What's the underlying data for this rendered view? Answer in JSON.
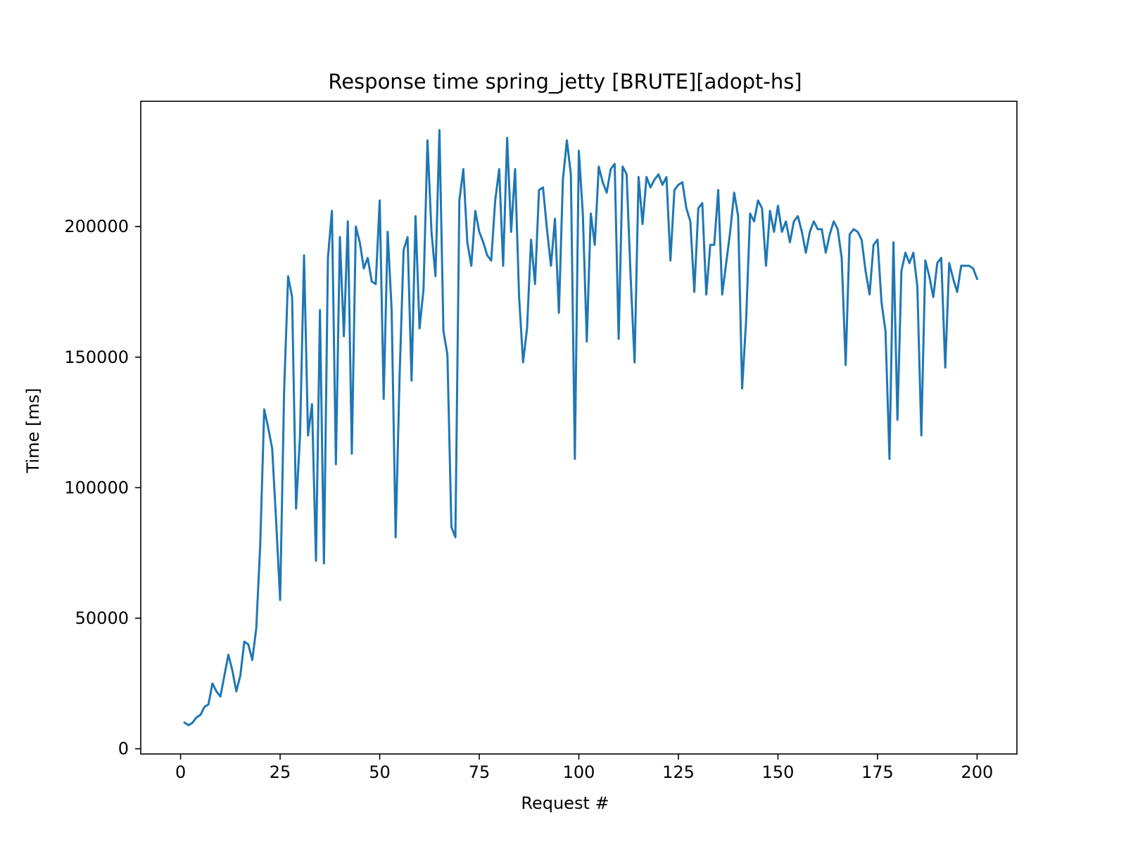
{
  "colors": {
    "line": "#1f77b4",
    "axes": "#000000",
    "background": "#ffffff"
  },
  "chart_data": {
    "type": "line",
    "title": "Response time spring_jetty [BRUTE][adopt-hs]",
    "xlabel": "Request #",
    "ylabel": "Time [ms]",
    "xlim": [
      -10,
      210
    ],
    "ylim": [
      -2000,
      248000
    ],
    "xticks": [
      0,
      25,
      50,
      75,
      100,
      125,
      150,
      175,
      200
    ],
    "yticks": [
      0,
      50000,
      100000,
      150000,
      200000
    ],
    "grid": false,
    "legend": "none",
    "series": [
      {
        "color": "#1f77b4",
        "x": [
          1,
          2,
          3,
          4,
          5,
          6,
          7,
          8,
          9,
          10,
          11,
          12,
          13,
          14,
          15,
          16,
          17,
          18,
          19,
          20,
          21,
          22,
          23,
          24,
          25,
          26,
          27,
          28,
          29,
          30,
          31,
          32,
          33,
          34,
          35,
          36,
          37,
          38,
          39,
          40,
          41,
          42,
          43,
          44,
          45,
          46,
          47,
          48,
          49,
          50,
          51,
          52,
          53,
          54,
          55,
          56,
          57,
          58,
          59,
          60,
          61,
          62,
          63,
          64,
          65,
          66,
          67,
          68,
          69,
          70,
          71,
          72,
          73,
          74,
          75,
          76,
          77,
          78,
          79,
          80,
          81,
          82,
          83,
          84,
          85,
          86,
          87,
          88,
          89,
          90,
          91,
          92,
          93,
          94,
          95,
          96,
          97,
          98,
          99,
          100,
          101,
          102,
          103,
          104,
          105,
          106,
          107,
          108,
          109,
          110,
          111,
          112,
          113,
          114,
          115,
          116,
          117,
          118,
          119,
          120,
          121,
          122,
          123,
          124,
          125,
          126,
          127,
          128,
          129,
          130,
          131,
          132,
          133,
          134,
          135,
          136,
          137,
          138,
          139,
          140,
          141,
          142,
          143,
          144,
          145,
          146,
          147,
          148,
          149,
          150,
          151,
          152,
          153,
          154,
          155,
          156,
          157,
          158,
          159,
          160,
          161,
          162,
          163,
          164,
          165,
          166,
          167,
          168,
          169,
          170,
          171,
          172,
          173,
          174,
          175,
          176,
          177,
          178,
          179,
          180,
          181,
          182,
          183,
          184,
          185,
          186,
          187,
          188,
          189,
          190,
          191,
          192,
          193,
          194,
          195,
          196,
          197,
          198,
          199,
          200
        ],
        "y": [
          10000,
          9000,
          10000,
          12000,
          13000,
          16000,
          17000,
          25000,
          22000,
          20000,
          28000,
          36000,
          30000,
          22000,
          28000,
          41000,
          40000,
          34000,
          46000,
          78000,
          130000,
          123000,
          115000,
          87000,
          57000,
          137000,
          181000,
          173000,
          92000,
          120000,
          189000,
          120000,
          132000,
          72000,
          168000,
          71000,
          188000,
          206000,
          109000,
          196000,
          158000,
          202000,
          113000,
          200000,
          194000,
          184000,
          188000,
          179000,
          178000,
          210000,
          134000,
          198000,
          168000,
          81000,
          143000,
          191000,
          196000,
          141000,
          204000,
          161000,
          176000,
          233000,
          198000,
          181000,
          237000,
          160000,
          151000,
          85000,
          81000,
          210000,
          222000,
          194000,
          185000,
          206000,
          198000,
          194000,
          189000,
          187000,
          210000,
          222000,
          185000,
          234000,
          198000,
          222000,
          173000,
          148000,
          161000,
          195000,
          178000,
          214000,
          215000,
          199000,
          185000,
          203000,
          167000,
          218000,
          233000,
          220000,
          111000,
          229000,
          205000,
          156000,
          205000,
          193000,
          223000,
          217000,
          213000,
          222000,
          224000,
          157000,
          223000,
          220000,
          181000,
          148000,
          219000,
          201000,
          219000,
          215000,
          218000,
          220000,
          216000,
          219000,
          187000,
          214000,
          216000,
          217000,
          207000,
          202000,
          175000,
          207000,
          209000,
          174000,
          193000,
          193000,
          214000,
          174000,
          186000,
          198000,
          213000,
          204000,
          138000,
          164000,
          205000,
          202000,
          210000,
          207000,
          185000,
          206000,
          198000,
          208000,
          198000,
          202000,
          194000,
          202000,
          204000,
          198000,
          190000,
          198000,
          202000,
          199000,
          199000,
          190000,
          197000,
          202000,
          199000,
          188000,
          147000,
          197000,
          199000,
          198000,
          195000,
          183000,
          174000,
          193000,
          195000,
          171000,
          160000,
          111000,
          194000,
          126000,
          183000,
          190000,
          186000,
          190000,
          177000,
          120000,
          187000,
          181000,
          173000,
          186000,
          188000,
          146000,
          186000,
          180000,
          175000,
          185000,
          185000,
          185000,
          184000,
          180000
        ]
      }
    ]
  }
}
